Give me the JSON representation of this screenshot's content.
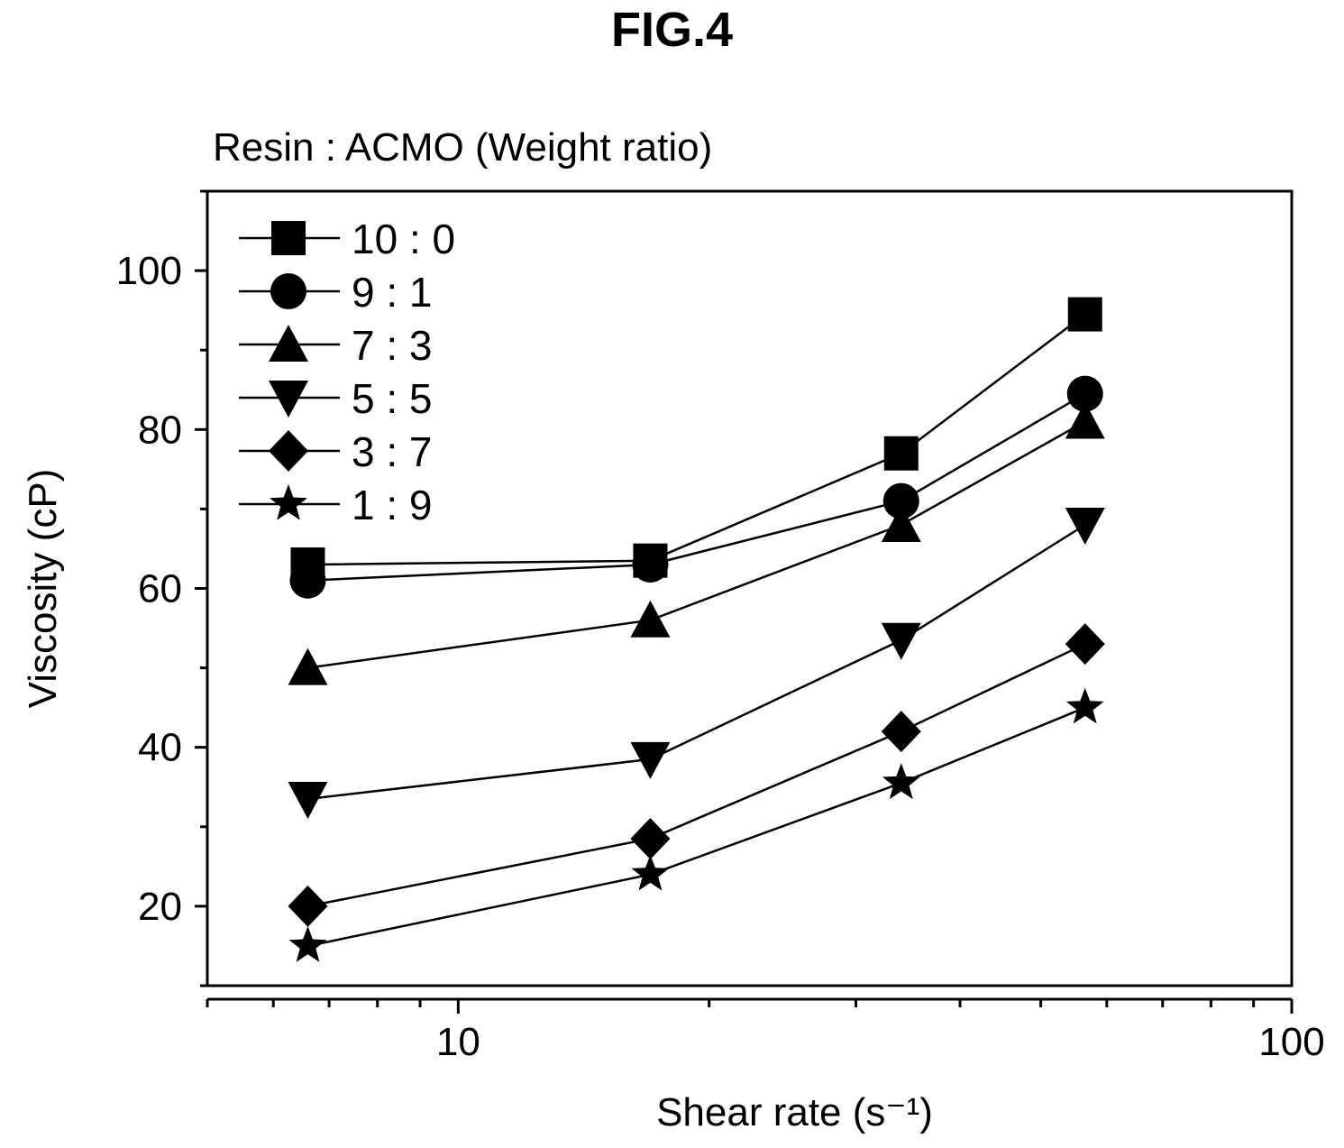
{
  "figure_label": "FIG.4",
  "chart_data": {
    "type": "line",
    "title": "",
    "subtitle": "Resin : ACMO (Weight ratio)",
    "xlabel": "Shear rate (s⁻¹)",
    "ylabel": "Viscosity (cP)",
    "xscale": "log",
    "xlim": [
      5,
      100
    ],
    "ylim": [
      10,
      110
    ],
    "x_ticks": [
      10,
      100
    ],
    "x_tick_labels": [
      "10",
      "100"
    ],
    "y_ticks": [
      20,
      40,
      60,
      80,
      100
    ],
    "y_tick_labels": [
      "20",
      "40",
      "60",
      "80",
      "100"
    ],
    "grid": false,
    "legend_position": "top-left",
    "x": [
      6.6,
      17,
      34,
      56.5
    ],
    "series": [
      {
        "name": "10 : 0",
        "marker": "square",
        "values": [
          63,
          63.5,
          77,
          94.5
        ]
      },
      {
        "name": "9 : 1",
        "marker": "circle",
        "values": [
          61,
          63,
          71,
          84.5
        ]
      },
      {
        "name": "7 : 3",
        "marker": "triangle-up",
        "values": [
          50,
          56,
          68,
          81
        ]
      },
      {
        "name": "5 : 5",
        "marker": "triangle-down",
        "values": [
          33.5,
          38.5,
          53.5,
          68
        ]
      },
      {
        "name": "3 : 7",
        "marker": "diamond",
        "values": [
          20,
          28.5,
          42,
          53
        ]
      },
      {
        "name": "1 : 9",
        "marker": "star",
        "values": [
          15,
          24,
          35.5,
          45
        ]
      }
    ]
  }
}
